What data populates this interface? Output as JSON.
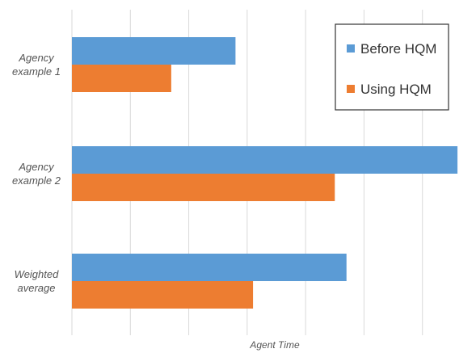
{
  "chart_data": {
    "type": "bar",
    "orientation": "horizontal",
    "categories": [
      [
        "Agency",
        "example 1"
      ],
      [
        "Agency",
        "example 2"
      ],
      [
        "Weighted",
        "average"
      ]
    ],
    "series": [
      {
        "name": "Before HQM",
        "color": "#5b9bd5",
        "values": [
          2.8,
          6.6,
          4.7
        ]
      },
      {
        "name": "Using HQM",
        "color": "#ed7d31",
        "values": [
          1.7,
          4.5,
          3.1
        ]
      }
    ],
    "xlabel": "Agent Time",
    "ylabel": "",
    "xlim": [
      0,
      7
    ],
    "grid": "vertical",
    "legend_position": "top-right"
  }
}
